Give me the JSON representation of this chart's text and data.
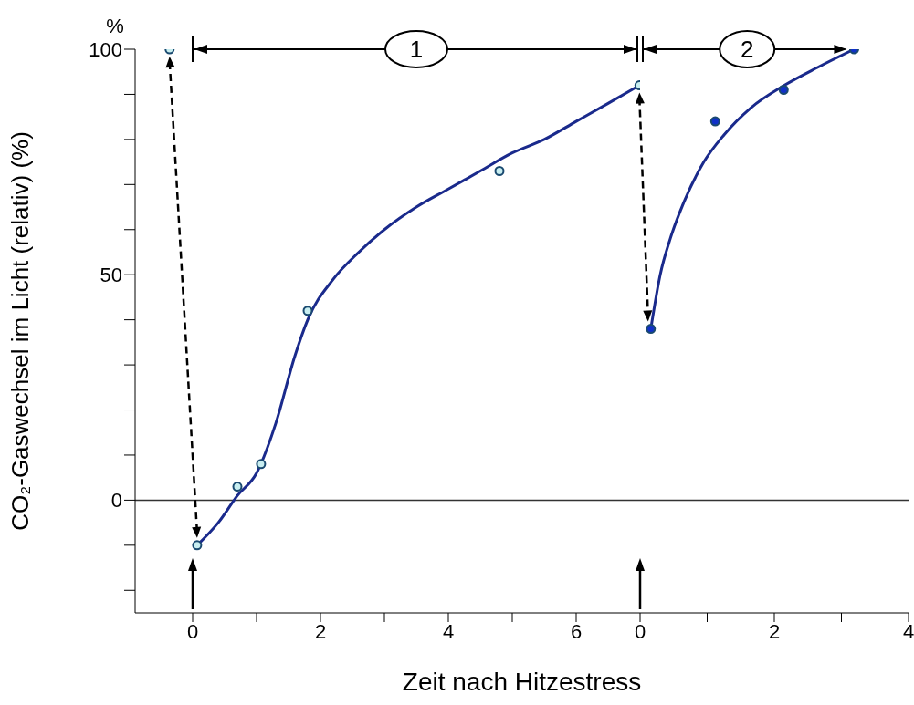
{
  "chart_data": [
    {
      "type": "scatter",
      "xlabel": "Zeit nach Hitzestress",
      "ylabel": "CO₂-Gaswechsel im Licht (relativ) (%)",
      "annotations": [
        "%",
        "1"
      ],
      "xlim": [
        -0.9,
        7
      ],
      "ylim": [
        -25,
        100
      ],
      "xticks": [
        0,
        {
          "value": 1,
          "label": null
        },
        2,
        {
          "value": 3,
          "label": null
        },
        4,
        {
          "value": 5,
          "label": null
        },
        6
      ],
      "yticks": [
        {
          "value": -20,
          "label": null
        },
        {
          "value": -10,
          "label": null
        },
        0,
        {
          "value": 10,
          "label": null
        },
        {
          "value": 20,
          "label": null
        },
        {
          "value": 30,
          "label": null
        },
        {
          "value": 40,
          "label": null
        },
        50,
        {
          "value": 60,
          "label": null
        },
        {
          "value": 70,
          "label": null
        },
        {
          "value": 80,
          "label": null
        },
        {
          "value": 90,
          "label": null
        },
        100
      ],
      "ref_lines": [
        {
          "axis": "y",
          "value": 0,
          "color": "#333333"
        }
      ],
      "line_style": "solid",
      "series": [
        {
          "type": "line",
          "marker": "none",
          "color": "#1a2a8c",
          "x": [
            0.07,
            0.4,
            0.7,
            1.0,
            1.3,
            1.6,
            1.8,
            2.2,
            2.6,
            3,
            3.5,
            4,
            4.5,
            5,
            5.5,
            6,
            6.5,
            6.99
          ],
          "values": [
            -10,
            -5,
            1,
            6,
            17,
            32,
            40,
            49,
            55,
            60,
            65,
            69,
            73,
            77,
            80,
            84,
            88,
            92
          ]
        },
        {
          "marker": "circle",
          "color": "#c8eef0",
          "x": [
            -0.36,
            0.07,
            0.7,
            1.07,
            1.8,
            4.8,
            6.99
          ],
          "values": [
            100,
            -10,
            3,
            8,
            42,
            73,
            92
          ]
        }
      ]
    },
    {
      "type": "scatter",
      "tick_labels": "x",
      "annotations": [
        "2"
      ],
      "xlim": [
        0,
        4
      ],
      "ylim": [
        -25,
        100
      ],
      "xticks": [
        0,
        {
          "value": 1,
          "label": null
        },
        2,
        {
          "value": 3,
          "label": null
        },
        4
      ],
      "ref_lines": [
        {
          "axis": "y",
          "value": 0,
          "color": "#333333"
        }
      ],
      "line_style": "solid",
      "series": [
        {
          "type": "line",
          "marker": "none",
          "color": "#1a2a8c",
          "x": [
            0.16,
            0.3,
            0.45,
            0.65,
            0.95,
            1.25,
            1.65,
            2.15,
            2.65,
            3.19
          ],
          "values": [
            38,
            50,
            58,
            66,
            75,
            81,
            87,
            92,
            96,
            100
          ]
        },
        {
          "marker": "circle",
          "color": "#1030c8",
          "x": [
            0.16,
            1.12,
            2.14,
            3.19
          ],
          "values": [
            38,
            84,
            91,
            100
          ]
        }
      ]
    }
  ]
}
